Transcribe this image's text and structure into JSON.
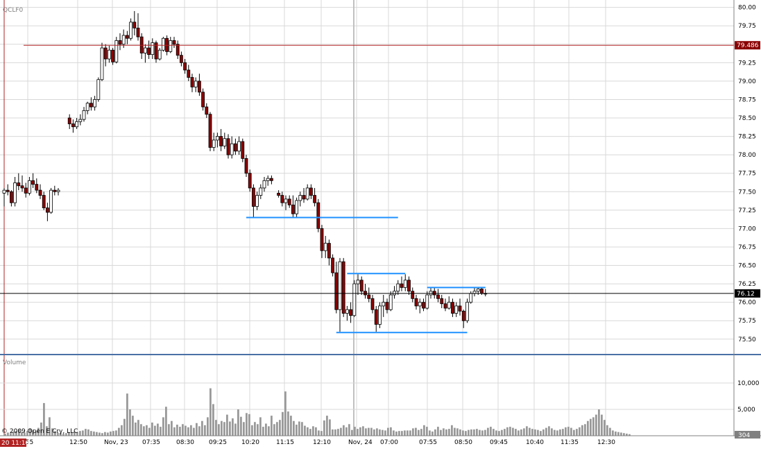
{
  "symbol": "QCLF0",
  "volume_label": "Volume",
  "copyright": "© 2009 Open E Cry, LLC",
  "cursor_time": "20 11:10",
  "colors": {
    "up": "#ffffff",
    "down": "#8b0000",
    "wick": "#000000",
    "resistance_line": "#b22222",
    "support_line": "#1e90ff",
    "current_price_line": "#000000",
    "volume_bar": "#999999",
    "grid": "#d8d8d8",
    "label_box": "#8b0000"
  },
  "chart_data": [
    {
      "type": "candlestick",
      "title": "QCLF0",
      "x_tick_labels": [
        "1:55",
        "12:50",
        "Nov, 23",
        "07:35",
        "08:30",
        "09:25",
        "10:20",
        "11:15",
        "12:10",
        "Nov, 24",
        "07:00",
        "07:55",
        "08:50",
        "09:45",
        "10:40",
        "11:35",
        "12:30"
      ],
      "ylim": [
        75.3,
        80.1
      ],
      "y_tick_labels": [
        "80.00",
        "79.75",
        "79.50",
        "79.25",
        "79.00",
        "78.75",
        "78.50",
        "78.25",
        "78.00",
        "77.75",
        "77.50",
        "77.25",
        "77.00",
        "76.75",
        "76.50",
        "76.25",
        "76.00",
        "75.75",
        "75.50"
      ],
      "y_ticks": [
        80.0,
        79.75,
        79.5,
        79.25,
        79.0,
        78.75,
        78.5,
        78.25,
        78.0,
        77.75,
        77.5,
        77.25,
        77.0,
        76.75,
        76.5,
        76.25,
        76.0,
        75.75,
        75.5
      ],
      "grid": true,
      "horizontal_lines": [
        {
          "label": "79.486",
          "value": 79.486,
          "color_key": "resistance_line"
        },
        {
          "label": "76.12",
          "value": 76.12,
          "color_key": "current_price_line"
        }
      ],
      "drawn_levels": [
        {
          "value": 77.15,
          "from": 65,
          "to": 106
        },
        {
          "value": 76.39,
          "from": 92,
          "to": 108
        },
        {
          "value": 75.59,
          "from": 89,
          "to": 125
        },
        {
          "value": 76.2,
          "from": 114,
          "to": 130
        }
      ],
      "candles": [
        {
          "o": 77.48,
          "h": 77.55,
          "l": 77.3,
          "c": 77.52
        },
        {
          "o": 77.52,
          "h": 77.6,
          "l": 77.45,
          "c": 77.5
        },
        {
          "o": 77.5,
          "h": 77.52,
          "l": 77.3,
          "c": 77.35
        },
        {
          "o": 77.35,
          "h": 77.7,
          "l": 77.3,
          "c": 77.62
        },
        {
          "o": 77.62,
          "h": 77.75,
          "l": 77.52,
          "c": 77.58
        },
        {
          "o": 77.58,
          "h": 77.72,
          "l": 77.5,
          "c": 77.55
        },
        {
          "o": 77.55,
          "h": 77.62,
          "l": 77.42,
          "c": 77.48
        },
        {
          "o": 77.48,
          "h": 77.7,
          "l": 77.45,
          "c": 77.65
        },
        {
          "o": 77.65,
          "h": 77.75,
          "l": 77.55,
          "c": 77.6
        },
        {
          "o": 77.6,
          "h": 77.68,
          "l": 77.48,
          "c": 77.52
        },
        {
          "o": 77.52,
          "h": 77.6,
          "l": 77.4,
          "c": 77.45
        },
        {
          "o": 77.45,
          "h": 77.5,
          "l": 77.25,
          "c": 77.28
        },
        {
          "o": 77.28,
          "h": 77.35,
          "l": 77.1,
          "c": 77.22
        },
        {
          "o": 77.22,
          "h": 77.55,
          "l": 77.2,
          "c": 77.52
        },
        {
          "o": 77.52,
          "h": 77.58,
          "l": 77.45,
          "c": 77.5
        },
        {
          "o": 77.5,
          "h": 77.55,
          "l": 77.45,
          "c": 77.52
        },
        {
          "o": 78.5,
          "h": 78.55,
          "l": 78.35,
          "c": 78.42
        },
        {
          "o": 78.42,
          "h": 78.48,
          "l": 78.3,
          "c": 78.38
        },
        {
          "o": 78.38,
          "h": 78.5,
          "l": 78.35,
          "c": 78.45
        },
        {
          "o": 78.45,
          "h": 78.55,
          "l": 78.4,
          "c": 78.48
        },
        {
          "o": 78.48,
          "h": 78.65,
          "l": 78.45,
          "c": 78.6
        },
        {
          "o": 78.6,
          "h": 78.72,
          "l": 78.55,
          "c": 78.7
        },
        {
          "o": 78.7,
          "h": 78.78,
          "l": 78.6,
          "c": 78.65
        },
        {
          "o": 78.65,
          "h": 78.8,
          "l": 78.6,
          "c": 78.75
        },
        {
          "o": 78.75,
          "h": 79.05,
          "l": 78.72,
          "c": 79.02
        },
        {
          "o": 79.02,
          "h": 79.52,
          "l": 79.0,
          "c": 79.45
        },
        {
          "o": 79.45,
          "h": 79.5,
          "l": 79.2,
          "c": 79.3
        },
        {
          "o": 79.3,
          "h": 79.48,
          "l": 79.25,
          "c": 79.42
        },
        {
          "o": 79.42,
          "h": 79.45,
          "l": 79.22,
          "c": 79.26
        },
        {
          "o": 79.26,
          "h": 79.6,
          "l": 79.24,
          "c": 79.55
        },
        {
          "o": 79.55,
          "h": 79.65,
          "l": 79.42,
          "c": 79.5
        },
        {
          "o": 79.5,
          "h": 79.7,
          "l": 79.45,
          "c": 79.62
        },
        {
          "o": 79.62,
          "h": 79.68,
          "l": 79.5,
          "c": 79.58
        },
        {
          "o": 79.58,
          "h": 79.85,
          "l": 79.55,
          "c": 79.8
        },
        {
          "o": 79.8,
          "h": 79.95,
          "l": 79.62,
          "c": 79.72
        },
        {
          "o": 79.72,
          "h": 79.92,
          "l": 79.55,
          "c": 79.6
        },
        {
          "o": 79.6,
          "h": 79.65,
          "l": 79.3,
          "c": 79.38
        },
        {
          "o": 79.38,
          "h": 79.5,
          "l": 79.25,
          "c": 79.45
        },
        {
          "o": 79.45,
          "h": 79.55,
          "l": 79.3,
          "c": 79.36
        },
        {
          "o": 79.36,
          "h": 79.58,
          "l": 79.3,
          "c": 79.52
        },
        {
          "o": 79.52,
          "h": 79.55,
          "l": 79.25,
          "c": 79.3
        },
        {
          "o": 79.3,
          "h": 79.45,
          "l": 79.28,
          "c": 79.42
        },
        {
          "o": 79.42,
          "h": 79.6,
          "l": 79.4,
          "c": 79.58
        },
        {
          "o": 79.58,
          "h": 79.62,
          "l": 79.35,
          "c": 79.4
        },
        {
          "o": 79.4,
          "h": 79.6,
          "l": 79.38,
          "c": 79.55
        },
        {
          "o": 79.55,
          "h": 79.6,
          "l": 79.45,
          "c": 79.5
        },
        {
          "o": 79.5,
          "h": 79.55,
          "l": 79.3,
          "c": 79.35
        },
        {
          "o": 79.35,
          "h": 79.4,
          "l": 79.2,
          "c": 79.25
        },
        {
          "o": 79.25,
          "h": 79.3,
          "l": 79.1,
          "c": 79.15
        },
        {
          "o": 79.15,
          "h": 79.22,
          "l": 79.0,
          "c": 79.05
        },
        {
          "o": 79.05,
          "h": 79.1,
          "l": 78.85,
          "c": 78.92
        },
        {
          "o": 78.92,
          "h": 79.05,
          "l": 78.85,
          "c": 79.0
        },
        {
          "o": 79.0,
          "h": 79.1,
          "l": 78.8,
          "c": 78.85
        },
        {
          "o": 78.85,
          "h": 78.9,
          "l": 78.6,
          "c": 78.65
        },
        {
          "o": 78.65,
          "h": 78.7,
          "l": 78.5,
          "c": 78.55
        },
        {
          "o": 78.55,
          "h": 78.58,
          "l": 78.05,
          "c": 78.1
        },
        {
          "o": 78.1,
          "h": 78.3,
          "l": 78.05,
          "c": 78.2
        },
        {
          "o": 78.2,
          "h": 78.3,
          "l": 78.1,
          "c": 78.25
        },
        {
          "o": 78.25,
          "h": 78.35,
          "l": 78.05,
          "c": 78.12
        },
        {
          "o": 78.12,
          "h": 78.3,
          "l": 78.08,
          "c": 78.22
        },
        {
          "o": 78.22,
          "h": 78.28,
          "l": 77.95,
          "c": 78.0
        },
        {
          "o": 78.0,
          "h": 78.25,
          "l": 77.95,
          "c": 78.15
        },
        {
          "o": 78.15,
          "h": 78.22,
          "l": 78.0,
          "c": 78.05
        },
        {
          "o": 78.05,
          "h": 78.25,
          "l": 78.0,
          "c": 78.18
        },
        {
          "o": 78.18,
          "h": 78.22,
          "l": 77.9,
          "c": 77.95
        },
        {
          "o": 77.95,
          "h": 78.0,
          "l": 77.7,
          "c": 77.75
        },
        {
          "o": 77.75,
          "h": 77.8,
          "l": 77.5,
          "c": 77.55
        },
        {
          "o": 77.55,
          "h": 77.6,
          "l": 77.15,
          "c": 77.3
        },
        {
          "o": 77.3,
          "h": 77.5,
          "l": 77.25,
          "c": 77.45
        },
        {
          "o": 77.45,
          "h": 77.6,
          "l": 77.4,
          "c": 77.55
        },
        {
          "o": 77.55,
          "h": 77.7,
          "l": 77.5,
          "c": 77.65
        },
        {
          "o": 77.65,
          "h": 77.72,
          "l": 77.58,
          "c": 77.68
        },
        {
          "o": 77.68,
          "h": 77.72,
          "l": 77.6,
          "c": 77.65
        },
        {
          "o": 77.48,
          "h": 77.52,
          "l": 77.42,
          "c": 77.45
        },
        {
          "o": 77.45,
          "h": 77.5,
          "l": 77.3,
          "c": 77.35
        },
        {
          "o": 77.35,
          "h": 77.45,
          "l": 77.25,
          "c": 77.4
        },
        {
          "o": 77.4,
          "h": 77.45,
          "l": 77.28,
          "c": 77.32
        },
        {
          "o": 77.32,
          "h": 77.45,
          "l": 77.15,
          "c": 77.2
        },
        {
          "o": 77.2,
          "h": 77.42,
          "l": 77.15,
          "c": 77.38
        },
        {
          "o": 77.38,
          "h": 77.5,
          "l": 77.3,
          "c": 77.45
        },
        {
          "o": 77.45,
          "h": 77.55,
          "l": 77.35,
          "c": 77.4
        },
        {
          "o": 77.4,
          "h": 77.6,
          "l": 77.38,
          "c": 77.55
        },
        {
          "o": 77.55,
          "h": 77.6,
          "l": 77.4,
          "c": 77.45
        },
        {
          "o": 77.45,
          "h": 77.55,
          "l": 77.3,
          "c": 77.35
        },
        {
          "o": 77.35,
          "h": 77.4,
          "l": 76.95,
          "c": 77.0
        },
        {
          "o": 77.0,
          "h": 77.05,
          "l": 76.6,
          "c": 76.7
        },
        {
          "o": 76.7,
          "h": 76.9,
          "l": 76.6,
          "c": 76.8
        },
        {
          "o": 76.8,
          "h": 76.85,
          "l": 76.5,
          "c": 76.6
        },
        {
          "o": 76.6,
          "h": 76.65,
          "l": 76.35,
          "c": 76.4
        },
        {
          "o": 76.4,
          "h": 76.55,
          "l": 75.85,
          "c": 75.9
        },
        {
          "o": 75.9,
          "h": 76.6,
          "l": 75.6,
          "c": 76.55
        },
        {
          "o": 76.55,
          "h": 76.6,
          "l": 75.8,
          "c": 75.85
        },
        {
          "o": 75.85,
          "h": 75.95,
          "l": 75.75,
          "c": 75.9
        },
        {
          "o": 75.9,
          "h": 76.0,
          "l": 75.72,
          "c": 75.82
        },
        {
          "o": 75.82,
          "h": 76.3,
          "l": 75.8,
          "c": 76.25
        },
        {
          "o": 76.25,
          "h": 76.38,
          "l": 76.1,
          "c": 76.3
        },
        {
          "o": 76.3,
          "h": 76.35,
          "l": 76.1,
          "c": 76.15
        },
        {
          "o": 76.15,
          "h": 76.25,
          "l": 76.05,
          "c": 76.1
        },
        {
          "o": 76.1,
          "h": 76.2,
          "l": 76.0,
          "c": 76.05
        },
        {
          "o": 76.05,
          "h": 76.1,
          "l": 75.85,
          "c": 75.9
        },
        {
          "o": 75.9,
          "h": 75.95,
          "l": 75.6,
          "c": 75.7
        },
        {
          "o": 75.7,
          "h": 76.0,
          "l": 75.65,
          "c": 75.95
        },
        {
          "o": 75.95,
          "h": 76.1,
          "l": 75.8,
          "c": 76.0
        },
        {
          "o": 76.0,
          "h": 76.05,
          "l": 75.85,
          "c": 75.9
        },
        {
          "o": 75.9,
          "h": 76.15,
          "l": 75.88,
          "c": 76.1
        },
        {
          "o": 76.1,
          "h": 76.22,
          "l": 76.05,
          "c": 76.15
        },
        {
          "o": 76.15,
          "h": 76.3,
          "l": 76.1,
          "c": 76.25
        },
        {
          "o": 76.25,
          "h": 76.35,
          "l": 76.15,
          "c": 76.2
        },
        {
          "o": 76.2,
          "h": 76.38,
          "l": 76.15,
          "c": 76.3
        },
        {
          "o": 76.3,
          "h": 76.35,
          "l": 76.1,
          "c": 76.15
        },
        {
          "o": 76.15,
          "h": 76.2,
          "l": 76.0,
          "c": 76.05
        },
        {
          "o": 76.05,
          "h": 76.1,
          "l": 75.9,
          "c": 75.95
        },
        {
          "o": 75.95,
          "h": 76.05,
          "l": 75.85,
          "c": 76.0
        },
        {
          "o": 76.0,
          "h": 76.05,
          "l": 75.88,
          "c": 75.92
        },
        {
          "o": 75.92,
          "h": 76.15,
          "l": 75.9,
          "c": 76.1
        },
        {
          "o": 76.1,
          "h": 76.2,
          "l": 76.05,
          "c": 76.15
        },
        {
          "o": 76.15,
          "h": 76.2,
          "l": 76.05,
          "c": 76.1
        },
        {
          "o": 76.1,
          "h": 76.18,
          "l": 76.0,
          "c": 76.05
        },
        {
          "o": 76.05,
          "h": 76.1,
          "l": 75.92,
          "c": 75.98
        },
        {
          "o": 75.98,
          "h": 76.05,
          "l": 75.88,
          "c": 75.92
        },
        {
          "o": 75.92,
          "h": 76.08,
          "l": 75.9,
          "c": 76.0
        },
        {
          "o": 76.0,
          "h": 76.05,
          "l": 75.8,
          "c": 75.85
        },
        {
          "o": 75.85,
          "h": 76.0,
          "l": 75.8,
          "c": 75.95
        },
        {
          "o": 75.95,
          "h": 76.05,
          "l": 75.82,
          "c": 75.88
        },
        {
          "o": 75.88,
          "h": 75.9,
          "l": 75.65,
          "c": 75.75
        },
        {
          "o": 75.75,
          "h": 76.05,
          "l": 75.72,
          "c": 76.0
        },
        {
          "o": 76.0,
          "h": 76.15,
          "l": 75.98,
          "c": 76.12
        },
        {
          "o": 76.12,
          "h": 76.2,
          "l": 76.08,
          "c": 76.15
        },
        {
          "o": 76.15,
          "h": 76.2,
          "l": 76.1,
          "c": 76.18
        },
        {
          "o": 76.18,
          "h": 76.2,
          "l": 76.1,
          "c": 76.12
        },
        {
          "o": 76.12,
          "h": 76.18,
          "l": 76.08,
          "c": 76.12
        }
      ]
    },
    {
      "type": "bar",
      "title": "Volume",
      "ylim": [
        0,
        15000
      ],
      "y_tick_labels": [
        "10,000",
        "5,000"
      ],
      "y_ticks": [
        10000,
        5000
      ],
      "current_value_label": "304",
      "values": [
        400,
        600,
        500,
        800,
        900,
        1200,
        700,
        600,
        900,
        1400,
        1000,
        800,
        1500,
        2500,
        6200,
        1800,
        3500,
        1400,
        900,
        600,
        500,
        400,
        500,
        700,
        600,
        800,
        700,
        900,
        1000,
        1300,
        1200,
        900,
        800,
        700,
        600,
        500,
        700,
        600,
        800,
        900,
        1000,
        1500,
        2000,
        3200,
        8000,
        5000,
        3800,
        2500,
        3000,
        2200,
        1800,
        2000,
        1500,
        2500,
        1900,
        2300,
        1700,
        3500,
        5500,
        2200,
        2800,
        1600,
        2100,
        1700,
        2200,
        1900,
        1600,
        2000,
        1500,
        2400,
        1800,
        2800,
        2000,
        3500,
        9000,
        6000,
        3000,
        2200,
        2800,
        2600,
        4000,
        2700,
        3300,
        2300,
        5000,
        3600,
        2600,
        4300,
        4100,
        2000,
        2600,
        2200,
        3500,
        1700,
        2300,
        1800,
        3800,
        2200,
        2600,
        3000,
        4500,
        8400,
        4600,
        3800,
        2800,
        2100,
        2700,
        2600,
        1900,
        1600,
        1300,
        1800,
        1600,
        1000,
        900,
        2900,
        3800,
        3100,
        1200,
        1200,
        1300,
        1500,
        2000,
        1600,
        2200,
        1100,
        1700,
        1300,
        1600,
        1800,
        1400,
        1500,
        1500,
        1200,
        1400,
        1200,
        1100,
        1000,
        1500,
        1600,
        1000,
        800,
        900,
        900,
        1000,
        1000,
        1000,
        1400,
        1500,
        1100,
        1300,
        2000,
        1700,
        1000,
        800,
        1200,
        1700,
        1100,
        1400,
        1200,
        1300,
        2000,
        1500,
        1400,
        1200,
        1000,
        900,
        1100,
        1200,
        1200,
        1300,
        1100,
        1000,
        1100,
        1500,
        1700,
        1300,
        1000,
        900,
        1100,
        1300,
        1600,
        1700,
        1500,
        1300,
        1000,
        1200,
        1400,
        1800,
        1500,
        1300,
        1200,
        1100,
        900,
        1200,
        1500,
        1800,
        1400,
        1100,
        1000,
        1200,
        1300,
        1600,
        1700,
        1500,
        1100,
        1300,
        1600,
        2000,
        2200,
        2800,
        3200,
        3500,
        4000,
        5000,
        4000,
        3000,
        2000,
        1500,
        1000,
        800,
        700,
        600,
        500,
        400,
        300
      ]
    }
  ]
}
